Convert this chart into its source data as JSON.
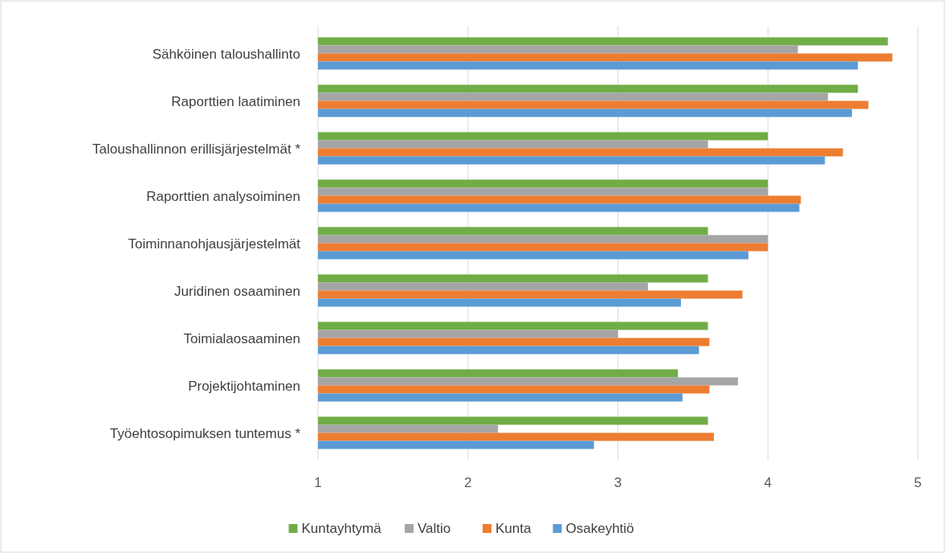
{
  "chart_data": {
    "type": "bar",
    "orientation": "horizontal",
    "categories": [
      "Sähköinen taloushallinto",
      "Raporttien laatiminen",
      "Taloushallinnon erillisjärjestelmät *",
      "Raporttien analysoiminen",
      "Toiminnanohjausjärjestelmät",
      "Juridinen osaaminen",
      "Toimialaosaaminen",
      "Projektijohtaminen",
      "Työehtosopimuksen tuntemus *"
    ],
    "series": [
      {
        "name": "Kuntayhtymä",
        "color": "#70ad47",
        "values": [
          4.8,
          4.6,
          4.0,
          4.0,
          3.6,
          3.6,
          3.6,
          3.4,
          3.6
        ]
      },
      {
        "name": "Valtio",
        "color": "#a5a5a5",
        "values": [
          4.2,
          4.4,
          3.6,
          4.0,
          4.0,
          3.2,
          3.0,
          3.8,
          2.2
        ]
      },
      {
        "name": "Kunta",
        "color": "#ed7d31",
        "values": [
          4.83,
          4.67,
          4.5,
          4.22,
          4.0,
          3.83,
          3.61,
          3.61,
          3.64
        ]
      },
      {
        "name": "Osakeyhtiö",
        "color": "#5b9bd5",
        "values": [
          4.6,
          4.56,
          4.38,
          4.21,
          3.87,
          3.42,
          3.54,
          3.43,
          2.84
        ]
      }
    ],
    "xlim": [
      1,
      5
    ],
    "xticks": [
      1,
      2,
      3,
      4,
      5
    ],
    "grid": "x",
    "legend": "bottom"
  }
}
